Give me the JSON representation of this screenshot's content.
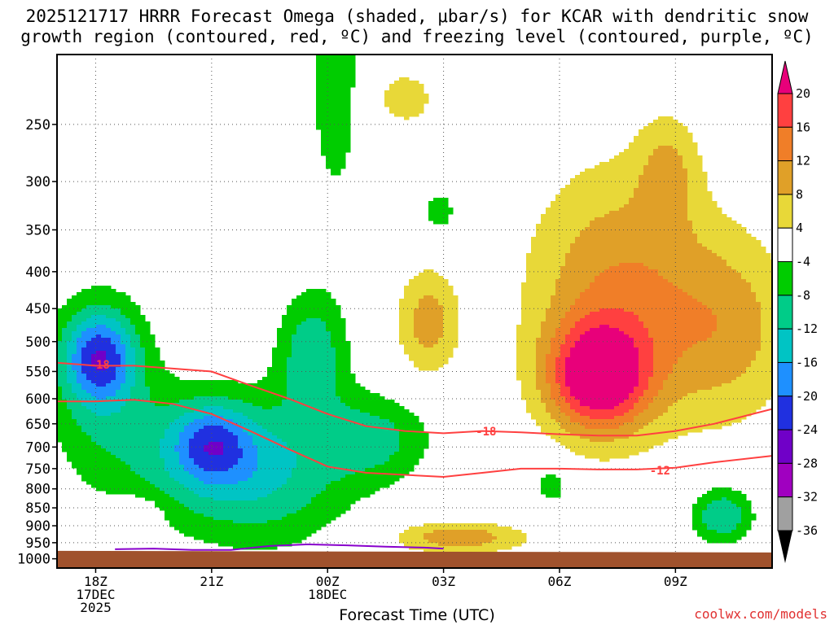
{
  "title": {
    "line1": "2025121717 HRRR Forecast Omega (shaded, μbar/s) for KCAR with dendritic snow",
    "line2": "growth region (contoured, red, ºC) and freezing level (contoured, purple, ºC)"
  },
  "xlabel": "Forecast Time (UTC)",
  "credit": "coolwx.com/models",
  "chart_data": {
    "type": "heatmap",
    "title": "2025121717 HRRR Forecast Omega (shaded, μbar/s) for KCAR with dendritic snow growth region (contoured, red, ºC) and freezing level (contoured, purple, ºC)",
    "xlabel": "Forecast Time (UTC)",
    "ylabel": "",
    "x_range_hours_since_17Z_17DEC": [
      0,
      18.5
    ],
    "y_axis": {
      "scale": "log-pressure",
      "ylim_hPa": [
        1030,
        200
      ],
      "inverted": true
    },
    "x_ticks": [
      {
        "hour": 1,
        "label": "18Z",
        "sub1": "17DEC",
        "sub2": "2025"
      },
      {
        "hour": 4,
        "label": "21Z",
        "sub1": "",
        "sub2": ""
      },
      {
        "hour": 7,
        "label": "00Z",
        "sub1": "18DEC",
        "sub2": ""
      },
      {
        "hour": 10,
        "label": "03Z",
        "sub1": "",
        "sub2": ""
      },
      {
        "hour": 13,
        "label": "06Z",
        "sub1": "",
        "sub2": ""
      },
      {
        "hour": 16,
        "label": "09Z",
        "sub1": "",
        "sub2": ""
      }
    ],
    "y_ticks": [
      250,
      300,
      350,
      400,
      450,
      500,
      550,
      600,
      650,
      700,
      750,
      800,
      850,
      900,
      950,
      1000
    ],
    "grid": true,
    "colorbar": {
      "units": "μbar/s",
      "levels": [
        {
          "label": "20",
          "from": 20,
          "to": 99,
          "color": "#e8007a"
        },
        {
          "label": "16",
          "from": 16,
          "to": 20,
          "color": "#ff4040"
        },
        {
          "label": "12",
          "from": 12,
          "to": 16,
          "color": "#f07e28"
        },
        {
          "label": "8",
          "from": 8,
          "to": 12,
          "color": "#e0a028"
        },
        {
          "label": "4",
          "from": 4,
          "to": 8,
          "color": "#e8d838"
        },
        {
          "label": "-4",
          "from": -4,
          "to": 4,
          "color": "#ffffff"
        },
        {
          "label": "-8",
          "from": -8,
          "to": -4,
          "color": "#00cc00"
        },
        {
          "label": "-12",
          "from": -12,
          "to": -8,
          "color": "#00cc88"
        },
        {
          "label": "-16",
          "from": -16,
          "to": -12,
          "color": "#00c4c4"
        },
        {
          "label": "-20",
          "from": -20,
          "to": -16,
          "color": "#1e90ff"
        },
        {
          "label": "-24",
          "from": -24,
          "to": -20,
          "color": "#2030e0"
        },
        {
          "label": "-28",
          "from": -28,
          "to": -24,
          "color": "#7000c8"
        },
        {
          "label": "-32",
          "from": -32,
          "to": -28,
          "color": "#a000c0"
        },
        {
          "label": "-36",
          "from": -36,
          "to": -32,
          "color": "#a0a0a0"
        }
      ],
      "top_arrow_color": "#e8007a",
      "bottom_arrow_color": "#000000"
    },
    "terrain_color": "#a0522d",
    "contours": [
      {
        "name": "-18",
        "label": "-18",
        "color": "#ff4040",
        "x": [
          0,
          1,
          2,
          3,
          4,
          5,
          6,
          7,
          8,
          9,
          10,
          11,
          12,
          13,
          14,
          15,
          16,
          17,
          18.5
        ],
        "y": [
          535,
          540,
          540,
          545,
          550,
          575,
          600,
          630,
          655,
          665,
          670,
          665,
          668,
          672,
          675,
          675,
          665,
          650,
          620
        ]
      },
      {
        "name": "-12",
        "label": "-12",
        "color": "#ff4040",
        "x": [
          0,
          1,
          2,
          3,
          4,
          5,
          6,
          7,
          8,
          9,
          10,
          11,
          12,
          13,
          14,
          15,
          16,
          17,
          18.5
        ],
        "y": [
          605,
          605,
          602,
          610,
          630,
          665,
          705,
          745,
          760,
          765,
          770,
          760,
          750,
          750,
          752,
          752,
          748,
          735,
          720
        ]
      },
      {
        "name": "freezing level",
        "label": "",
        "color": "#8800cc",
        "x": [
          1.5,
          2.5,
          3.5,
          4.5,
          5.5,
          6.5,
          7.5,
          8.5,
          9.5,
          10
        ],
        "y": [
          970,
          968,
          972,
          972,
          960,
          955,
          958,
          962,
          965,
          968
        ]
      }
    ],
    "label_positions": [
      {
        "text": "-18",
        "x": 1.1,
        "y": 538
      },
      {
        "text": "-18",
        "x": 11.1,
        "y": 666
      },
      {
        "text": "-12",
        "x": 15.6,
        "y": 754
      }
    ]
  }
}
